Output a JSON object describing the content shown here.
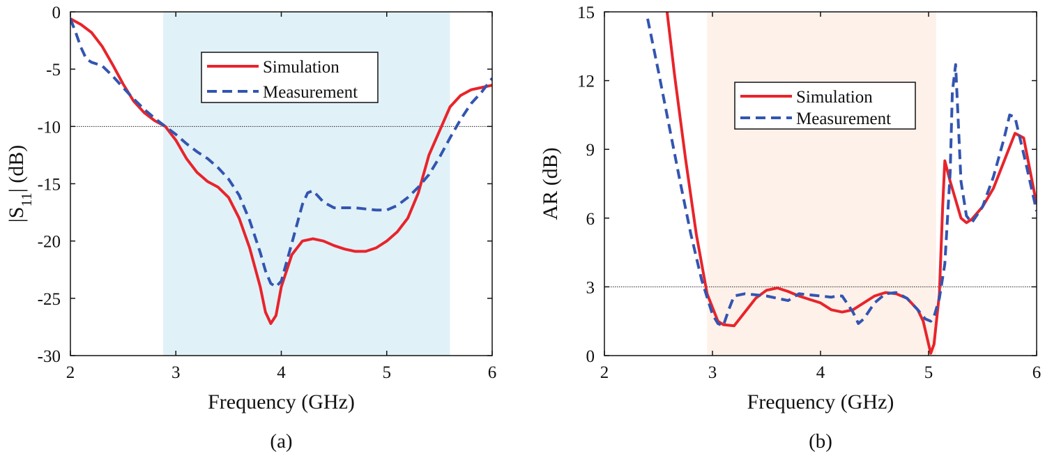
{
  "chart_data": [
    {
      "type": "line",
      "caption": "(a)",
      "xlabel": "Frequency (GHz)",
      "ylabel_main": "|S",
      "ylabel_sub": "11",
      "ylabel_end": "| (dB)",
      "xlim": [
        2,
        6
      ],
      "ylim": [
        -30,
        0
      ],
      "xticks": [
        "2",
        "3",
        "4",
        "5",
        "6"
      ],
      "yticks": [
        "0",
        "-5",
        "-10",
        "-15",
        "-20",
        "-25",
        "-30"
      ],
      "grid": false,
      "shaded_band": {
        "x0": 2.88,
        "x1": 5.6,
        "color": "#e1f1f8"
      },
      "reference_line": {
        "y": -10
      },
      "legend_position": "top-center",
      "series": [
        {
          "name": "Simulation",
          "color": "#e8242b",
          "dash": "solid",
          "x": [
            2.0,
            2.1,
            2.2,
            2.3,
            2.4,
            2.5,
            2.6,
            2.7,
            2.8,
            2.9,
            3.0,
            3.1,
            3.2,
            3.3,
            3.4,
            3.5,
            3.6,
            3.7,
            3.8,
            3.85,
            3.9,
            3.95,
            4.0,
            4.1,
            4.2,
            4.3,
            4.4,
            4.5,
            4.6,
            4.7,
            4.8,
            4.9,
            5.0,
            5.1,
            5.2,
            5.3,
            5.4,
            5.5,
            5.6,
            5.7,
            5.8,
            5.9,
            6.0
          ],
          "y": [
            -0.6,
            -1.1,
            -1.8,
            -3.0,
            -4.6,
            -6.3,
            -7.8,
            -8.8,
            -9.5,
            -10.0,
            -11.2,
            -12.8,
            -14.0,
            -14.8,
            -15.3,
            -16.2,
            -18.0,
            -20.6,
            -24.0,
            -26.2,
            -27.2,
            -26.5,
            -24.0,
            -21.2,
            -20.0,
            -19.8,
            -20.0,
            -20.4,
            -20.7,
            -20.9,
            -20.9,
            -20.6,
            -20.0,
            -19.2,
            -18.0,
            -15.8,
            -12.5,
            -10.4,
            -8.3,
            -7.3,
            -6.8,
            -6.6,
            -6.4
          ]
        },
        {
          "name": "Measurement",
          "color": "#3355b0",
          "dash": "dashed",
          "x": [
            2.0,
            2.05,
            2.1,
            2.15,
            2.2,
            2.3,
            2.4,
            2.5,
            2.6,
            2.7,
            2.8,
            2.9,
            3.0,
            3.1,
            3.2,
            3.3,
            3.4,
            3.5,
            3.6,
            3.7,
            3.8,
            3.85,
            3.9,
            3.95,
            4.0,
            4.1,
            4.2,
            4.25,
            4.3,
            4.4,
            4.5,
            4.6,
            4.7,
            4.8,
            4.9,
            5.0,
            5.1,
            5.2,
            5.3,
            5.4,
            5.5,
            5.6,
            5.7,
            5.8,
            5.9,
            6.0
          ],
          "y": [
            -0.6,
            -1.8,
            -3.1,
            -4.1,
            -4.4,
            -4.7,
            -5.6,
            -6.6,
            -7.6,
            -8.5,
            -9.3,
            -10.0,
            -10.7,
            -11.5,
            -12.2,
            -12.8,
            -13.6,
            -14.6,
            -16.0,
            -18.2,
            -21.0,
            -22.6,
            -23.7,
            -24.0,
            -23.5,
            -20.2,
            -16.8,
            -15.8,
            -15.6,
            -16.6,
            -17.1,
            -17.1,
            -17.1,
            -17.2,
            -17.3,
            -17.3,
            -16.9,
            -16.2,
            -15.3,
            -14.2,
            -12.7,
            -11.0,
            -9.4,
            -8.0,
            -7.0,
            -5.8
          ]
        }
      ]
    },
    {
      "type": "line",
      "caption": "(b)",
      "xlabel": "Frequency (GHz)",
      "ylabel": "AR (dB)",
      "xlim": [
        2,
        6
      ],
      "ylim": [
        0,
        15
      ],
      "xticks": [
        "2",
        "3",
        "4",
        "5",
        "6"
      ],
      "yticks": [
        "0",
        "3",
        "6",
        "9",
        "12",
        "15"
      ],
      "grid": false,
      "shaded_band": {
        "x0": 2.95,
        "x1": 5.07,
        "color": "#fdf1ea"
      },
      "reference_line": {
        "y": 3
      },
      "legend_position": "center",
      "series": [
        {
          "name": "Simulation",
          "color": "#e8242b",
          "dash": "solid",
          "x": [
            2.58,
            2.65,
            2.75,
            2.85,
            2.95,
            3.05,
            3.1,
            3.2,
            3.3,
            3.4,
            3.5,
            3.6,
            3.7,
            3.8,
            3.9,
            4.0,
            4.1,
            4.2,
            4.3,
            4.4,
            4.5,
            4.6,
            4.7,
            4.8,
            4.9,
            4.95,
            5.0,
            5.02,
            5.05,
            5.1,
            5.13,
            5.15,
            5.2,
            5.3,
            5.35,
            5.4,
            5.5,
            5.6,
            5.7,
            5.8,
            5.88,
            6.0
          ],
          "y": [
            15.0,
            12.2,
            8.6,
            5.3,
            2.7,
            1.5,
            1.35,
            1.3,
            1.9,
            2.5,
            2.85,
            2.95,
            2.8,
            2.6,
            2.45,
            2.3,
            2.0,
            1.9,
            2.0,
            2.3,
            2.6,
            2.75,
            2.7,
            2.5,
            2.0,
            1.5,
            0.5,
            0.1,
            0.5,
            2.7,
            6.5,
            8.5,
            7.6,
            6.0,
            5.8,
            5.95,
            6.5,
            7.3,
            8.5,
            9.7,
            9.5,
            6.6
          ]
        },
        {
          "name": "Measurement",
          "color": "#3355b0",
          "dash": "dashed",
          "x": [
            2.4,
            2.5,
            2.6,
            2.7,
            2.8,
            2.9,
            3.0,
            3.05,
            3.1,
            3.15,
            3.2,
            3.3,
            3.4,
            3.5,
            3.6,
            3.7,
            3.8,
            3.9,
            4.0,
            4.1,
            4.15,
            4.2,
            4.3,
            4.35,
            4.4,
            4.5,
            4.6,
            4.7,
            4.8,
            4.9,
            4.97,
            5.02,
            5.05,
            5.1,
            5.15,
            5.2,
            5.22,
            5.25,
            5.3,
            5.35,
            5.4,
            5.5,
            5.6,
            5.7,
            5.75,
            5.8,
            5.9,
            6.0
          ],
          "y": [
            14.7,
            12.4,
            10.0,
            7.6,
            5.3,
            3.3,
            1.8,
            1.4,
            1.3,
            2.0,
            2.6,
            2.7,
            2.65,
            2.6,
            2.5,
            2.4,
            2.7,
            2.65,
            2.6,
            2.55,
            2.6,
            2.6,
            1.9,
            1.4,
            1.6,
            2.3,
            2.7,
            2.75,
            2.5,
            2.0,
            1.6,
            1.5,
            1.7,
            2.5,
            4.0,
            8.0,
            11.5,
            12.7,
            7.6,
            6.1,
            5.8,
            6.5,
            7.8,
            9.5,
            10.5,
            10.4,
            8.4,
            6.3
          ]
        }
      ]
    }
  ]
}
